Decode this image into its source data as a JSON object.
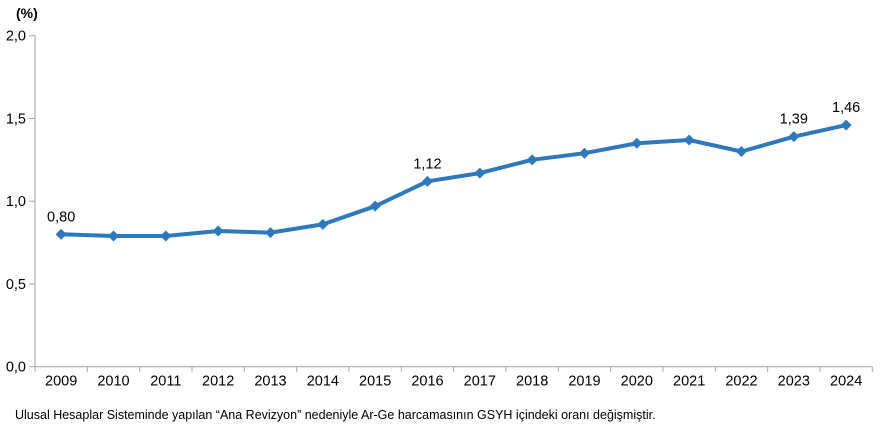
{
  "page": {
    "unit_label": "(%)",
    "footnote": "Ulusal Hesaplar Sisteminde yapılan “Ana Revizyon” nedeniyle Ar-Ge harcamasının GSYH içindeki oranı değişmiştir."
  },
  "chart_data": {
    "type": "line",
    "title": "(%)",
    "xlabel": "",
    "ylabel": "(%)",
    "categories": [
      "2009",
      "2010",
      "2011",
      "2012",
      "2013",
      "2014",
      "2015",
      "2016",
      "2017",
      "2018",
      "2019",
      "2020",
      "2021",
      "2022",
      "2023",
      "2024"
    ],
    "series": [
      {
        "name": "Ar-Ge harcamasının GSYH içindeki oranı",
        "values": [
          0.8,
          0.79,
          0.79,
          0.82,
          0.81,
          0.86,
          0.97,
          1.12,
          1.17,
          1.25,
          1.29,
          1.35,
          1.37,
          1.3,
          1.39,
          1.46
        ]
      }
    ],
    "point_labels": [
      {
        "index": 0,
        "text": "0,80"
      },
      {
        "index": 7,
        "text": "1,12"
      },
      {
        "index": 14,
        "text": "1,39"
      },
      {
        "index": 15,
        "text": "1,46"
      }
    ],
    "y_ticks": [
      {
        "value": 0.0,
        "label": "0,0"
      },
      {
        "value": 0.5,
        "label": "0,5"
      },
      {
        "value": 1.0,
        "label": "1,0"
      },
      {
        "value": 1.5,
        "label": "1,5"
      },
      {
        "value": 2.0,
        "label": "2,0"
      }
    ],
    "ylim": [
      0,
      2
    ],
    "grid": false,
    "legend_position": "none",
    "marker": "diamond",
    "colors": {
      "line": "#2e78be",
      "marker": "#2e78be",
      "axis": "#a6a6a6",
      "tick_label": "#000000",
      "data_label": "#000000"
    }
  }
}
